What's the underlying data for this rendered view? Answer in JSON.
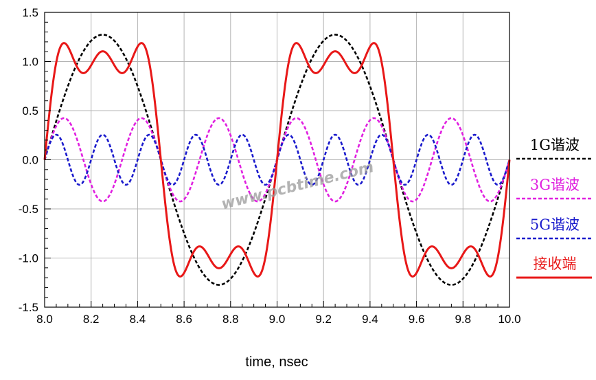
{
  "chart_data": {
    "type": "line",
    "xlabel": "time, nsec",
    "ylabel": "",
    "xlim": [
      8.0,
      10.0
    ],
    "ylim": [
      -1.5,
      1.5
    ],
    "grid": true,
    "legend_placement": "right",
    "x_ticks": [
      "8.0",
      "8.2",
      "8.4",
      "8.6",
      "8.8",
      "9.0",
      "9.2",
      "9.4",
      "9.6",
      "9.8",
      "10.0"
    ],
    "y_ticks": [
      "1.5",
      "1.0",
      "0.5",
      "0.0",
      "-0.5",
      "-1.0",
      "-1.5"
    ],
    "watermark": "www.pcbtime.com",
    "series": [
      {
        "name": "1G谐波",
        "color": "#000000",
        "dash": "dashed",
        "frequency_ghz": 1,
        "amplitude": 1.273,
        "phase_ref_ns": 8.0
      },
      {
        "name": "3G谐波",
        "color": "#e020e0",
        "dash": "dashed",
        "frequency_ghz": 3,
        "amplitude": 0.424,
        "phase_ref_ns": 8.0
      },
      {
        "name": "5G谐波",
        "color": "#1a1acc",
        "dash": "dashed",
        "frequency_ghz": 5,
        "amplitude": 0.255,
        "phase_ref_ns": 8.0
      },
      {
        "name": "接收端",
        "color": "#e81818",
        "dash": "solid",
        "sum_of_series": [
          "1G谐波",
          "3G谐波",
          "5G谐波"
        ]
      }
    ]
  }
}
